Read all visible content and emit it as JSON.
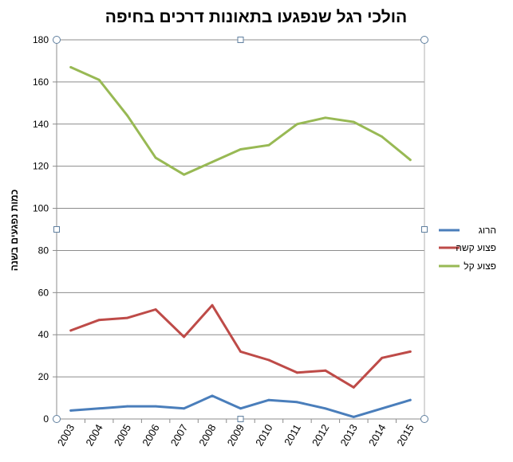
{
  "chart_data": {
    "type": "line",
    "title": "הולכי רגל שנפגעו בתאונות דרכים בחיפה",
    "xlabel": "",
    "ylabel": "כמות נפגעים בשנה",
    "categories": [
      "2003",
      "2004",
      "2005",
      "2006",
      "2007",
      "2008",
      "2009",
      "2010",
      "2011",
      "2012",
      "2013",
      "2014",
      "2015"
    ],
    "ylim": [
      0,
      180
    ],
    "yticks": [
      0,
      20,
      40,
      60,
      80,
      100,
      120,
      140,
      160,
      180
    ],
    "grid": true,
    "legend_position": "right",
    "series": [
      {
        "name": "הרוג",
        "color": "#4a7ebb",
        "values": [
          4,
          5,
          6,
          6,
          5,
          11,
          5,
          9,
          8,
          5,
          1,
          5,
          9
        ]
      },
      {
        "name": "פצוע קשה",
        "color": "#be4b48",
        "values": [
          42,
          47,
          48,
          52,
          39,
          54,
          32,
          28,
          22,
          23,
          15,
          29,
          32
        ]
      },
      {
        "name": "פצוע קל",
        "color": "#98b954",
        "values": [
          167,
          161,
          144,
          124,
          116,
          122,
          128,
          130,
          140,
          143,
          141,
          134,
          123
        ]
      }
    ]
  }
}
